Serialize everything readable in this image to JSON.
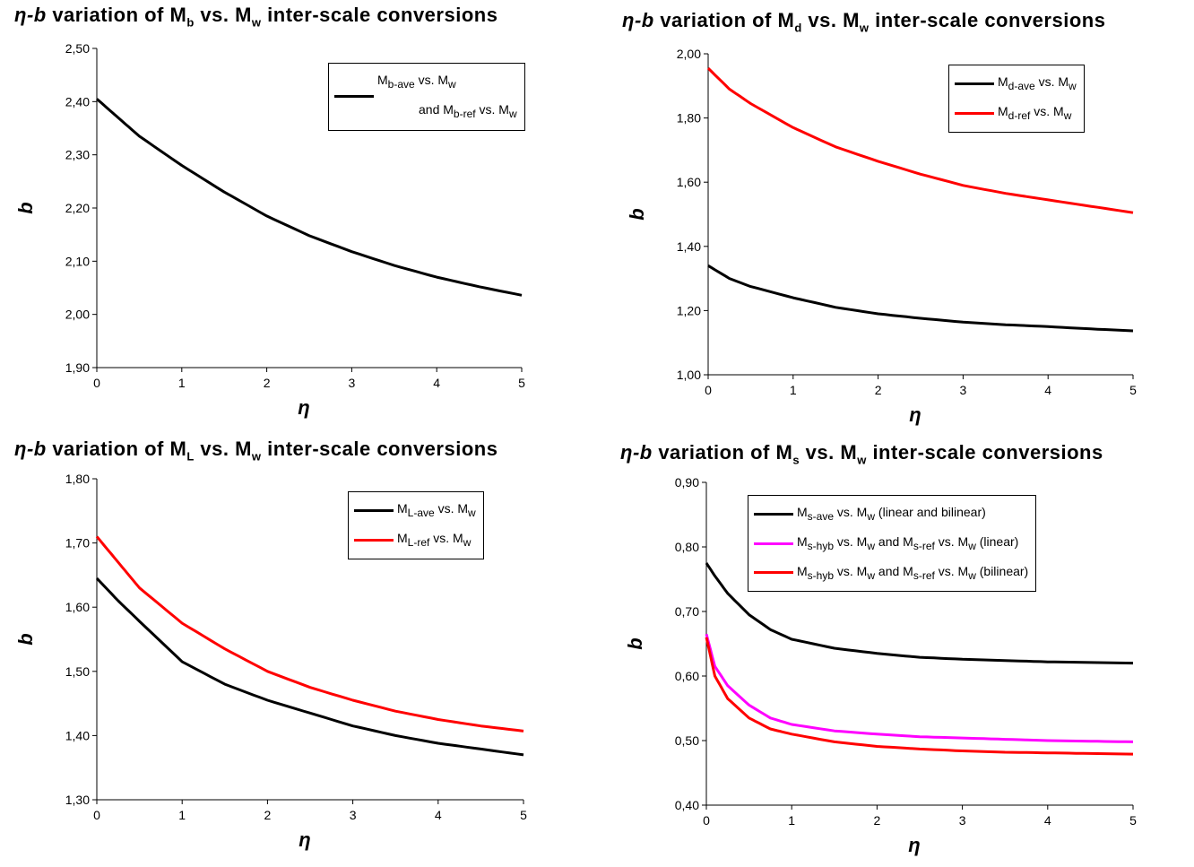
{
  "panels": [
    {
      "id": "mb",
      "title": {
        "pre": "η-b",
        "mid": " variation of M",
        "sub": "b",
        "post": " vs. M",
        "sub2": "w",
        "tail": " inter-scale conversions"
      },
      "legend": [
        {
          "color": "#000000",
          "text": [
            [
              "M",
              ""
            ],
            [
              "b-ave",
              "sub"
            ],
            [
              " vs. M",
              ""
            ],
            [
              "w",
              "sub"
            ]
          ],
          "text2": [
            [
              "and M",
              ""
            ],
            [
              "b-ref",
              "sub"
            ],
            [
              " vs. M",
              ""
            ],
            [
              "w",
              "sub"
            ]
          ]
        }
      ]
    },
    {
      "id": "md",
      "title": {
        "pre": "η-b",
        "mid": " variation of M",
        "sub": "d",
        "post": " vs. M",
        "sub2": "w",
        "tail": " inter-scale conversions"
      },
      "legend": [
        {
          "color": "#000000",
          "text": [
            [
              "M",
              ""
            ],
            [
              "d-ave",
              "sub"
            ],
            [
              " vs. M",
              ""
            ],
            [
              "w",
              "sub"
            ]
          ]
        },
        {
          "color": "#ff0000",
          "text": [
            [
              "M",
              ""
            ],
            [
              "d-ref",
              "sub"
            ],
            [
              " vs. M",
              ""
            ],
            [
              "w",
              "sub"
            ]
          ]
        }
      ]
    },
    {
      "id": "ml",
      "title": {
        "pre": "η-b",
        "mid": " variation of M",
        "sub": "L",
        "post": " vs. M",
        "sub2": "w",
        "tail": " inter-scale conversions"
      },
      "legend": [
        {
          "color": "#000000",
          "text": [
            [
              "M",
              ""
            ],
            [
              "L-ave",
              "sub"
            ],
            [
              " vs. M",
              ""
            ],
            [
              "w",
              "sub"
            ]
          ]
        },
        {
          "color": "#ff0000",
          "text": [
            [
              "M",
              ""
            ],
            [
              "L-ref",
              "sub"
            ],
            [
              " vs. M",
              ""
            ],
            [
              "w",
              "sub"
            ]
          ]
        }
      ]
    },
    {
      "id": "ms",
      "title": {
        "pre": "η-b",
        "mid": " variation of M",
        "sub": "s",
        "post": " vs. M",
        "sub2": "w",
        "tail": " inter-scale conversions"
      },
      "legend": [
        {
          "color": "#000000",
          "text": [
            [
              "M",
              ""
            ],
            [
              "s-ave",
              "sub"
            ],
            [
              " vs. M",
              ""
            ],
            [
              "w",
              "sub"
            ],
            [
              "  (linear and bilinear)",
              ""
            ]
          ]
        },
        {
          "color": "#ff00ff",
          "text": [
            [
              "M",
              ""
            ],
            [
              "s-hyb",
              "sub"
            ],
            [
              " vs. M",
              ""
            ],
            [
              "w",
              "sub"
            ],
            [
              " and M",
              ""
            ],
            [
              "s-ref",
              "sub"
            ],
            [
              " vs. M",
              ""
            ],
            [
              "w",
              "sub"
            ],
            [
              " (linear)",
              ""
            ]
          ]
        },
        {
          "color": "#ff0000",
          "text": [
            [
              "M",
              ""
            ],
            [
              "s-hyb",
              "sub"
            ],
            [
              " vs. M",
              ""
            ],
            [
              "w",
              "sub"
            ],
            [
              " and M",
              ""
            ],
            [
              "s-ref",
              "sub"
            ],
            [
              " vs. M",
              ""
            ],
            [
              "w",
              "sub"
            ],
            [
              " (bilinear)",
              ""
            ]
          ]
        }
      ]
    }
  ],
  "chart_data": [
    {
      "type": "line",
      "title": "η-b variation of Mb vs. Mw inter-scale conversions",
      "xlabel": "η",
      "ylabel": "b",
      "xlim": [
        0,
        5
      ],
      "ylim": [
        1.9,
        2.5
      ],
      "xticks": [
        "0",
        "1",
        "2",
        "3",
        "4",
        "5"
      ],
      "yticks": [
        "1,90",
        "2,00",
        "2,10",
        "2,20",
        "2,30",
        "2,40",
        "2,50"
      ],
      "grid": false,
      "legend_position": "top-right",
      "x": [
        0,
        0.25,
        0.5,
        1,
        1.5,
        2,
        2.5,
        3,
        3.5,
        4,
        4.5,
        5
      ],
      "series": [
        {
          "name": "Mb-ave vs. Mw and Mb-ref vs. Mw",
          "color": "#000000",
          "values": [
            2.405,
            2.37,
            2.335,
            2.28,
            2.23,
            2.185,
            2.148,
            2.118,
            2.092,
            2.07,
            2.052,
            2.036
          ]
        }
      ]
    },
    {
      "type": "line",
      "title": "η-b variation of Md vs. Mw inter-scale conversions",
      "xlabel": "η",
      "ylabel": "b",
      "xlim": [
        0,
        5
      ],
      "ylim": [
        1.0,
        2.0
      ],
      "xticks": [
        "0",
        "1",
        "2",
        "3",
        "4",
        "5"
      ],
      "yticks": [
        "1,00",
        "1,20",
        "1,40",
        "1,60",
        "1,80",
        "2,00"
      ],
      "grid": false,
      "legend_position": "top-right",
      "x": [
        0,
        0.25,
        0.5,
        1,
        1.5,
        2,
        2.5,
        3,
        3.5,
        4,
        4.5,
        5
      ],
      "series": [
        {
          "name": "Md-ave vs. Mw",
          "color": "#000000",
          "values": [
            1.34,
            1.3,
            1.275,
            1.24,
            1.21,
            1.19,
            1.176,
            1.164,
            1.156,
            1.15,
            1.143,
            1.137
          ]
        },
        {
          "name": "Md-ref vs. Mw",
          "color": "#ff0000",
          "values": [
            1.955,
            1.89,
            1.845,
            1.77,
            1.71,
            1.665,
            1.625,
            1.59,
            1.565,
            1.545,
            1.525,
            1.505
          ]
        }
      ]
    },
    {
      "type": "line",
      "title": "η-b variation of ML vs. Mw inter-scale conversions",
      "xlabel": "η",
      "ylabel": "b",
      "xlim": [
        0,
        5
      ],
      "ylim": [
        1.3,
        1.8
      ],
      "xticks": [
        "0",
        "1",
        "2",
        "3",
        "4",
        "5"
      ],
      "yticks": [
        "1,30",
        "1,40",
        "1,50",
        "1,60",
        "1,70",
        "1,80"
      ],
      "grid": false,
      "legend_position": "top-right",
      "x": [
        0,
        0.25,
        0.5,
        1,
        1.5,
        2,
        2.5,
        3,
        3.5,
        4,
        4.5,
        5
      ],
      "series": [
        {
          "name": "ML-ave vs. Mw",
          "color": "#000000",
          "values": [
            1.645,
            1.61,
            1.578,
            1.515,
            1.48,
            1.455,
            1.435,
            1.415,
            1.4,
            1.388,
            1.379,
            1.37
          ]
        },
        {
          "name": "ML-ref vs. Mw",
          "color": "#ff0000",
          "values": [
            1.71,
            1.67,
            1.63,
            1.575,
            1.535,
            1.5,
            1.475,
            1.455,
            1.438,
            1.425,
            1.415,
            1.407
          ]
        }
      ]
    },
    {
      "type": "line",
      "title": "η-b variation of Ms vs. Mw inter-scale conversions",
      "xlabel": "η",
      "ylabel": "b",
      "xlim": [
        0,
        5
      ],
      "ylim": [
        0.4,
        0.9
      ],
      "xticks": [
        "0",
        "1",
        "2",
        "3",
        "4",
        "5"
      ],
      "yticks": [
        "0,40",
        "0,50",
        "0,60",
        "0,70",
        "0,80",
        "0,90"
      ],
      "grid": false,
      "legend_position": "top-right",
      "x": [
        0,
        0.1,
        0.25,
        0.5,
        0.75,
        1,
        1.5,
        2,
        2.5,
        3,
        3.5,
        4,
        4.5,
        5
      ],
      "series": [
        {
          "name": "Ms-ave vs. Mw (linear and bilinear)",
          "color": "#000000",
          "values": [
            0.775,
            0.755,
            0.728,
            0.695,
            0.672,
            0.657,
            0.643,
            0.635,
            0.629,
            0.626,
            0.624,
            0.622,
            0.621,
            0.62
          ]
        },
        {
          "name": "Ms-hyb vs. Mw and Ms-ref vs. Mw (linear)",
          "color": "#ff00ff",
          "values": [
            0.665,
            0.615,
            0.585,
            0.555,
            0.535,
            0.525,
            0.515,
            0.51,
            0.506,
            0.504,
            0.502,
            0.5,
            0.499,
            0.498
          ]
        },
        {
          "name": "Ms-hyb vs. Mw and Ms-ref vs. Mw (bilinear)",
          "color": "#ff0000",
          "values": [
            0.66,
            0.6,
            0.565,
            0.535,
            0.518,
            0.51,
            0.498,
            0.491,
            0.487,
            0.484,
            0.482,
            0.481,
            0.48,
            0.479
          ]
        }
      ]
    }
  ]
}
